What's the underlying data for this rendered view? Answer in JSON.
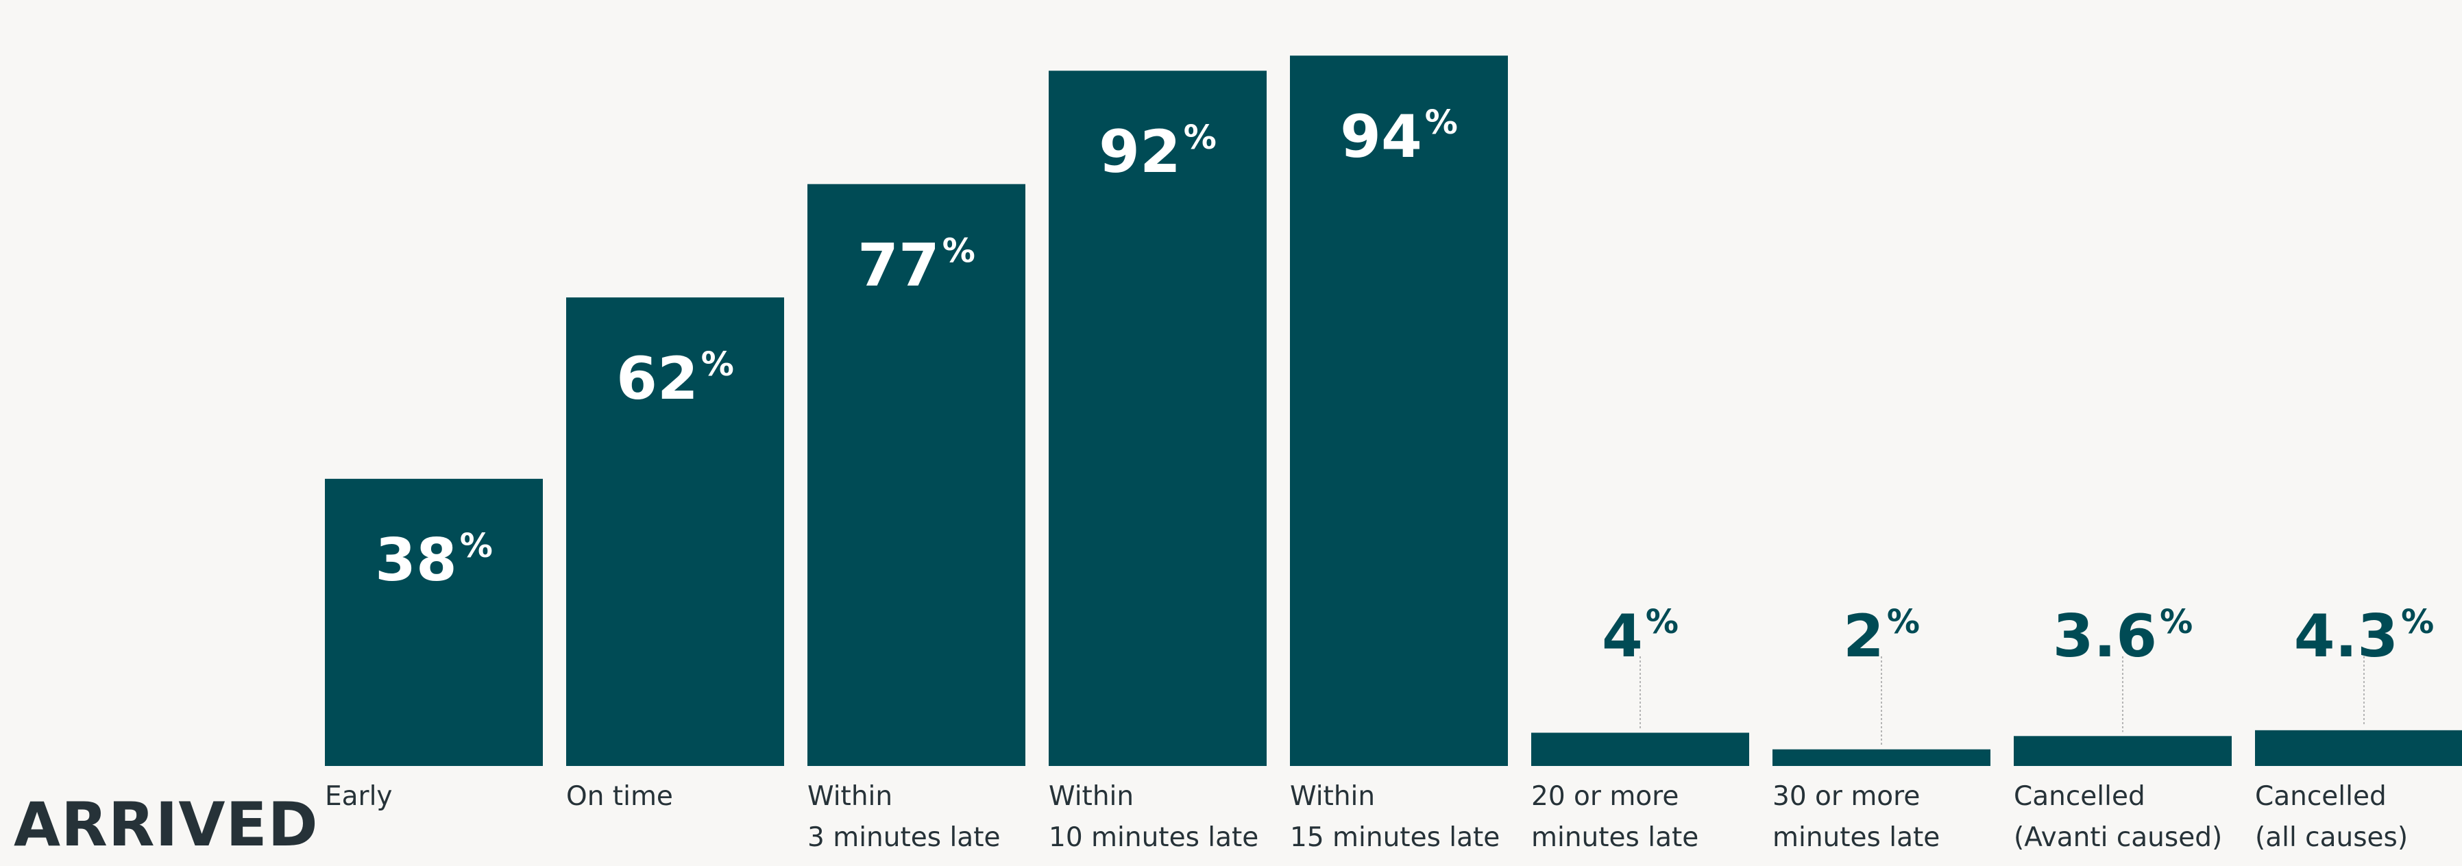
{
  "section_label": "ARRIVED",
  "colors": {
    "bar": "#004b55",
    "label_inside": "#ffffff",
    "label_outside": "#004b55",
    "category_text": "#263238",
    "leader_line": "#b5b5b5",
    "background": "#f8f7f5"
  },
  "chart_data": {
    "type": "bar",
    "title": "",
    "xlabel": "",
    "ylabel": "",
    "ylim": [
      0,
      100
    ],
    "grid": false,
    "categories": [
      [
        "Early"
      ],
      [
        "On time"
      ],
      [
        "Within",
        "3 minutes late"
      ],
      [
        "Within",
        "10 minutes late"
      ],
      [
        "Within",
        "15 minutes late"
      ],
      [
        "20 or more",
        "minutes late"
      ],
      [
        "30 or more",
        "minutes late"
      ],
      [
        "Cancelled",
        "(Avanti caused)"
      ],
      [
        "Cancelled",
        "(all causes)"
      ]
    ],
    "values": [
      38,
      62,
      77,
      92,
      94,
      4,
      2,
      3.6,
      4.3
    ],
    "value_labels": [
      {
        "number": "38",
        "unit": "%"
      },
      {
        "number": "62",
        "unit": "%"
      },
      {
        "number": "77",
        "unit": "%"
      },
      {
        "number": "92",
        "unit": "%"
      },
      {
        "number": "94",
        "unit": "%"
      },
      {
        "number": "4",
        "unit": "%"
      },
      {
        "number": "2",
        "unit": "%"
      },
      {
        "number": "3.6",
        "unit": "%"
      },
      {
        "number": "4.3",
        "unit": "%"
      }
    ]
  }
}
